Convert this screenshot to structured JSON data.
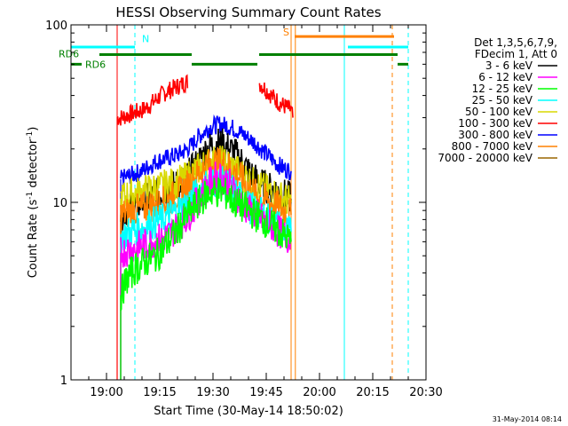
{
  "chart_data": {
    "type": "line",
    "title": "HESSI Observing Summary Count Rates",
    "xlabel": "Start Time (30-May-14 18:50:02)",
    "ylabel_main": "Count Rate (s",
    "ylabel_sup": "-1",
    "ylabel_tail": " detector",
    "ylabel_sup2": "-1",
    "ylabel_close": ")",
    "yscale": "log",
    "ylim": [
      1,
      100
    ],
    "xlim_minutes_since_1850": [
      0,
      100
    ],
    "x_ticks": [
      "19:00",
      "19:15",
      "19:30",
      "19:45",
      "20:00",
      "20:15",
      "20:30"
    ],
    "x_tick_minutes": [
      10,
      25,
      40,
      55,
      70,
      85,
      100
    ],
    "y_tick_labels": [
      "1",
      "10",
      "100"
    ],
    "y_tick_values": [
      1,
      10,
      100
    ],
    "legend": {
      "header": [
        "Det 1,3,5,6,7,9,",
        "FDecim 1, Att 0"
      ],
      "entries": [
        {
          "label": "3 - 6 keV",
          "color": "#000000"
        },
        {
          "label": "6 - 12 keV",
          "color": "#ff00ff"
        },
        {
          "label": "12 - 25 keV",
          "color": "#00ff00"
        },
        {
          "label": "25 - 50 keV",
          "color": "#00ffff"
        },
        {
          "label": "50 - 100 keV",
          "color": "#d8d800"
        },
        {
          "label": "100 - 300 keV",
          "color": "#ff0000"
        },
        {
          "label": "300 - 800 keV",
          "color": "#0000ff"
        },
        {
          "label": "800 - 7000 keV",
          "color": "#ff8000"
        },
        {
          "label": "7000 - 20000 keV",
          "color": "#9a6600"
        }
      ],
      "placement": "right"
    },
    "flags": [
      {
        "label": "N",
        "color": "#00ffff"
      },
      {
        "label": "S",
        "color": "#ff8000"
      },
      {
        "label": "RD6",
        "color": "#008000"
      },
      {
        "label": "RD6",
        "color": "#008000"
      }
    ],
    "series": [
      {
        "label": "100 - 300 keV",
        "color": "#ff0000",
        "x": [
          13,
          14,
          16,
          18,
          20,
          22,
          24,
          26,
          28,
          30,
          32,
          33,
          33.1,
          36,
          40,
          44,
          48,
          50,
          52,
          53,
          53.1,
          55,
          57,
          59,
          61,
          62,
          62.5
        ],
        "y": [
          30,
          30,
          31,
          32,
          33,
          35,
          38,
          41,
          43,
          45,
          47,
          48,
          null,
          null,
          null,
          null,
          null,
          null,
          null,
          null,
          47,
          43,
          39,
          36,
          34,
          33,
          30
        ]
      },
      {
        "label": "300 - 800 keV",
        "color": "#0000ff",
        "x": [
          14,
          16,
          18,
          20,
          22,
          24,
          26,
          28,
          30,
          32,
          34,
          36,
          38,
          40,
          42,
          44,
          46,
          48,
          50,
          52,
          54,
          56,
          58,
          60,
          62
        ],
        "y": [
          13.5,
          14,
          14.5,
          15,
          16,
          17,
          17.5,
          18,
          18.5,
          19.5,
          21,
          23.5,
          25.5,
          27,
          27.5,
          27,
          26,
          24.5,
          23,
          21.5,
          19.5,
          18,
          16.5,
          15.5,
          15
        ]
      },
      {
        "label": "3 - 6 keV",
        "color": "#000000",
        "x": [
          14,
          16,
          18,
          20,
          22,
          24,
          26,
          28,
          30,
          32,
          34,
          36,
          38,
          40,
          42,
          44,
          46,
          48,
          50,
          52,
          54,
          56,
          58,
          60,
          62
        ],
        "y": [
          8.5,
          9,
          9.5,
          10,
          10.5,
          11,
          11.5,
          12,
          12.5,
          13.5,
          15,
          17,
          19.5,
          21,
          21.5,
          20.5,
          19,
          17,
          15,
          13.5,
          12.5,
          12,
          11.5,
          11,
          10.5
        ]
      },
      {
        "label": "50 - 100 keV",
        "color": "#d8d800",
        "x": [
          14,
          16,
          18,
          20,
          22,
          24,
          26,
          28,
          30,
          32,
          34,
          36,
          38,
          40,
          42,
          44,
          46,
          48,
          50,
          52,
          54,
          56,
          58,
          60,
          62
        ],
        "y": [
          10.5,
          11,
          11.2,
          11.5,
          11.8,
          12,
          12.3,
          12.6,
          13,
          13.5,
          14.5,
          15.5,
          16.5,
          17,
          17,
          16.5,
          15.5,
          14.5,
          13.5,
          12.5,
          12,
          11.5,
          11,
          10.5,
          10
        ]
      },
      {
        "label": "800 - 7000 keV",
        "color": "#ff8000",
        "x": [
          14,
          16,
          18,
          20,
          22,
          24,
          26,
          28,
          30,
          32,
          34,
          36,
          38,
          40,
          42,
          44,
          46,
          48,
          50,
          52,
          54,
          56,
          58,
          60,
          62
        ],
        "y": [
          8.5,
          8.7,
          9,
          9.2,
          9.5,
          9.8,
          10,
          10.5,
          11,
          12,
          13,
          14.5,
          16,
          16.5,
          16.5,
          16,
          15,
          13.5,
          12,
          11,
          10.5,
          10,
          9.5,
          9,
          8.5
        ]
      },
      {
        "label": "25 - 50 keV",
        "color": "#00ffff",
        "x": [
          14,
          16,
          18,
          20,
          22,
          24,
          26,
          28,
          30,
          32,
          34,
          36,
          38,
          40,
          42,
          44,
          46,
          48,
          50,
          52,
          54,
          56,
          58,
          60,
          62
        ],
        "y": [
          6.5,
          6.7,
          7,
          7.2,
          7.5,
          7.8,
          8,
          8.5,
          9,
          9.5,
          10.5,
          11.5,
          12.5,
          13,
          13,
          12.5,
          11.5,
          10.5,
          9.5,
          9,
          8.5,
          8,
          7.5,
          7,
          6.8
        ]
      },
      {
        "label": "6 - 12 keV",
        "color": "#ff00ff",
        "x": [
          14,
          16,
          18,
          20,
          22,
          24,
          26,
          28,
          30,
          32,
          34,
          36,
          38,
          40,
          42,
          44,
          46,
          48,
          50,
          52,
          54,
          56,
          58,
          60,
          62
        ],
        "y": [
          5.2,
          5.4,
          5.5,
          5.7,
          5.9,
          6.1,
          6.3,
          6.7,
          7.3,
          8,
          9,
          10.5,
          12,
          13.5,
          14,
          13,
          11.5,
          10,
          9,
          8.5,
          8,
          7.5,
          7,
          6.5,
          6.2
        ]
      },
      {
        "label": "12 - 25 keV",
        "color": "#00ff00",
        "x": [
          14,
          15,
          16,
          18,
          20,
          22,
          24,
          26,
          28,
          30,
          32,
          34,
          36,
          38,
          40,
          42,
          44,
          46,
          48,
          50,
          52,
          54,
          56,
          58,
          60,
          62
        ],
        "y": [
          3,
          3.4,
          3.8,
          4.2,
          4.5,
          4.8,
          5,
          5.5,
          6.2,
          7,
          8,
          9,
          10,
          11,
          11.5,
          11.5,
          11,
          10,
          9.5,
          9,
          8.5,
          8,
          7.5,
          7,
          6.5,
          6
        ]
      }
    ],
    "vertical_lines": [
      {
        "minute": 0,
        "color": "#00ffff",
        "style": "solid"
      },
      {
        "minute": 13,
        "color": "#ff0000",
        "style": "solid"
      },
      {
        "minute": 18,
        "color": "#00ffff",
        "style": "dashed"
      },
      {
        "minute": 62,
        "color": "#ff8000",
        "style": "solid"
      },
      {
        "minute": 63.2,
        "color": "#ff8000",
        "style": "solid"
      },
      {
        "minute": 77,
        "color": "#00ffff",
        "style": "solid"
      },
      {
        "minute": 90.5,
        "color": "#ff8000",
        "style": "dashed"
      },
      {
        "minute": 95,
        "color": "#00ffff",
        "style": "dashed"
      }
    ],
    "flag_bars": [
      {
        "color": "#00ffff",
        "y": 75,
        "segments": [
          [
            0,
            18
          ],
          [
            78,
            95
          ]
        ]
      },
      {
        "color": "#ff8000",
        "y": 86,
        "segments": [
          [
            63,
            91
          ]
        ]
      },
      {
        "color": "#008000",
        "y": 68,
        "segments": [
          [
            8,
            34
          ],
          [
            53,
            92
          ]
        ]
      },
      {
        "color": "#008000",
        "y": 60,
        "segments": [
          [
            0,
            3
          ],
          [
            34,
            52.5
          ],
          [
            92,
            95
          ]
        ]
      }
    ]
  },
  "footer": {
    "timestamp": "31-May-2014 08:14"
  }
}
